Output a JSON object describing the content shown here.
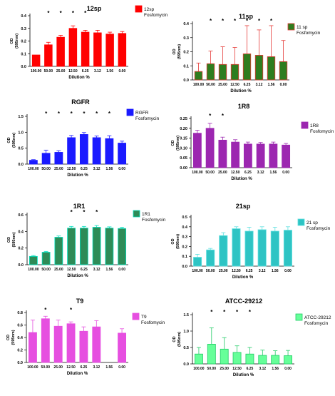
{
  "figure": {
    "xlabel": "Dilution %",
    "categories": [
      "100.00",
      "50.00",
      "25.00",
      "12.50",
      "6.25",
      "3.12",
      "1.56",
      "0.00"
    ]
  },
  "chart_data": [
    {
      "type": "bar",
      "title": "12sp",
      "xlabel": "Dilution %",
      "ylabel": "OD (595nm)",
      "ylim": [
        0,
        0.4
      ],
      "yticks": [
        "0.0",
        "0.1",
        "0.2",
        "0.3",
        "0.4"
      ],
      "categories": [
        "100.00",
        "50.00",
        "25.00",
        "12.50",
        "6.25",
        "3.12",
        "1.56",
        "0.00"
      ],
      "series": [
        {
          "name": "12sp Fosfomycin",
          "values": [
            0.09,
            0.17,
            0.23,
            0.3,
            0.27,
            0.265,
            0.255,
            0.26
          ],
          "errors": [
            0.0,
            0.02,
            0.015,
            0.02,
            0.015,
            0.02,
            0.015,
            0.015
          ]
        }
      ],
      "significant": [
        false,
        true,
        true,
        true,
        true,
        false,
        false,
        false
      ],
      "colors": {
        "fill": "#ff0000",
        "edge": "#ff0000"
      },
      "legend_position": "right"
    },
    {
      "type": "bar",
      "title": "11sp",
      "xlabel": "Dilution %",
      "ylabel": "OD (595nm)",
      "ylim": [
        0,
        0.4
      ],
      "yticks": [
        "0.0",
        "0.1",
        "0.2",
        "0.3",
        "0.4"
      ],
      "categories": [
        "100.00",
        "50.00",
        "25.00",
        "12.50",
        "6.25",
        "3.12",
        "1.56",
        "0.00"
      ],
      "series": [
        {
          "name": "11 sp Fosfomycin",
          "values": [
            0.06,
            0.115,
            0.11,
            0.11,
            0.185,
            0.175,
            0.165,
            0.13
          ],
          "errors": [
            0.06,
            0.09,
            0.125,
            0.12,
            0.2,
            0.18,
            0.22,
            0.15
          ]
        }
      ],
      "significant": [
        false,
        true,
        true,
        true,
        true,
        true,
        true,
        false
      ],
      "colors": {
        "fill": "#2e7d1f",
        "edge": "#e53935"
      },
      "legend_position": "right"
    },
    {
      "type": "bar",
      "title": "RGFR",
      "xlabel": "Dilution %",
      "ylabel": "OD (595nm)",
      "ylim": [
        0,
        1.5
      ],
      "yticks": [
        "0.0",
        "0.5",
        "1.0",
        "1.5"
      ],
      "categories": [
        "100.00",
        "50.00",
        "25.00",
        "12.50",
        "6.25",
        "3.12",
        "1.56",
        "0.00"
      ],
      "series": [
        {
          "name": "RGFR Fosfomycin",
          "values": [
            0.12,
            0.34,
            0.37,
            0.83,
            0.93,
            0.83,
            0.8,
            0.66
          ],
          "errors": [
            0.02,
            0.1,
            0.05,
            0.07,
            0.06,
            0.05,
            0.09,
            0.06
          ]
        }
      ],
      "significant": [
        false,
        true,
        true,
        true,
        true,
        true,
        true,
        false
      ],
      "colors": {
        "fill": "#1a1aff",
        "edge": "#1a1aff"
      },
      "legend_position": "right"
    },
    {
      "type": "bar",
      "title": "1R8",
      "xlabel": "Dilution %",
      "ylabel": "OD (595nm)",
      "ylim": [
        0,
        0.25
      ],
      "yticks": [
        "0.00",
        "0.05",
        "0.10",
        "0.15",
        "0.20",
        "0.25"
      ],
      "categories": [
        "100.00",
        "50.00",
        "25.00",
        "12.50",
        "6.25",
        "3.12",
        "1.56",
        "0.00"
      ],
      "series": [
        {
          "name": "1R8 Fosfomycin",
          "values": [
            0.175,
            0.2,
            0.14,
            0.13,
            0.12,
            0.12,
            0.12,
            0.115
          ],
          "errors": [
            0.015,
            0.025,
            0.015,
            0.012,
            0.01,
            0.008,
            0.01,
            0.008
          ]
        }
      ],
      "significant": [
        false,
        true,
        true,
        false,
        false,
        false,
        false,
        false
      ],
      "colors": {
        "fill": "#9c27b0",
        "edge": "#9c27b0"
      },
      "legend_position": "right"
    },
    {
      "type": "bar",
      "title": "1R1",
      "xlabel": "Dilution %",
      "ylabel": "OD (595nm)",
      "ylim": [
        0,
        0.6
      ],
      "yticks": [
        "0.0",
        "0.2",
        "0.4",
        "0.6"
      ],
      "categories": [
        "100.00",
        "50.00",
        "25.00",
        "12.50",
        "6.25",
        "3.12",
        "1.56",
        "0.00"
      ],
      "series": [
        {
          "name": "1R1 Fosfomycin",
          "values": [
            0.1,
            0.15,
            0.33,
            0.44,
            0.44,
            0.45,
            0.44,
            0.435
          ],
          "errors": [
            0.01,
            0.01,
            0.015,
            0.02,
            0.02,
            0.02,
            0.015,
            0.015
          ]
        }
      ],
      "significant": [
        false,
        false,
        false,
        true,
        true,
        true,
        false,
        false
      ],
      "colors": {
        "fill": "#2e8b57",
        "edge": "#00e0c0"
      },
      "legend_position": "right"
    },
    {
      "type": "bar",
      "title": "21sp",
      "xlabel": "Dilution %",
      "ylabel": "OD (595nm)",
      "ylim": [
        0,
        0.5
      ],
      "yticks": [
        "0.0",
        "0.1",
        "0.2",
        "0.3",
        "0.4",
        "0.5"
      ],
      "categories": [
        "100.00",
        "50.00",
        "25.00",
        "12.50",
        "6.25",
        "3.12",
        "1.56",
        "0.00"
      ],
      "series": [
        {
          "name": "21 sp Fosfomycin",
          "values": [
            0.09,
            0.165,
            0.31,
            0.38,
            0.355,
            0.37,
            0.355,
            0.365
          ],
          "errors": [
            0.03,
            0.015,
            0.03,
            0.02,
            0.04,
            0.03,
            0.04,
            0.035
          ]
        }
      ],
      "significant": [
        false,
        false,
        false,
        false,
        false,
        false,
        false,
        false
      ],
      "colors": {
        "fill": "#2ec4c4",
        "edge": "#5ee0e0"
      },
      "legend_position": "right"
    },
    {
      "type": "bar",
      "title": "T9",
      "xlabel": "Dilution %",
      "ylabel": "OD (595nm)",
      "ylim": [
        0,
        0.8
      ],
      "yticks": [
        "0.0",
        "0.2",
        "0.4",
        "0.6",
        "0.8"
      ],
      "categories": [
        "100.00",
        "50.00",
        "25.00",
        "12.50",
        "6.25",
        "3.12",
        "1.56",
        "0.00"
      ],
      "series": [
        {
          "name": "T9 Fosfomycin",
          "values": [
            0.48,
            0.7,
            0.58,
            0.62,
            0.5,
            0.57,
            null,
            0.47
          ],
          "errors": [
            0.2,
            0.04,
            0.1,
            0.03,
            0.07,
            0.1,
            null,
            0.07
          ]
        }
      ],
      "significant": [
        false,
        true,
        false,
        true,
        false,
        false,
        false,
        false
      ],
      "colors": {
        "fill": "#e64fe0",
        "edge": "#e64fe0"
      },
      "legend_position": "right"
    },
    {
      "type": "bar",
      "title": "ATCC-29212",
      "xlabel": "Dilution %",
      "ylabel": "OD (595nm)",
      "ylim": [
        0,
        1.5
      ],
      "yticks": [
        "0.0",
        "0.5",
        "1.0",
        "1.5"
      ],
      "categories": [
        "100.00",
        "50.00",
        "25.00",
        "12.50",
        "6.25",
        "3.12",
        "1.56",
        "0.00"
      ],
      "series": [
        {
          "name": "ATCC-29212 Fosfomycin",
          "values": [
            0.3,
            0.6,
            0.45,
            0.35,
            0.3,
            0.26,
            0.26,
            0.25
          ],
          "errors": [
            0.2,
            0.5,
            0.35,
            0.2,
            0.2,
            0.16,
            0.14,
            0.16
          ]
        }
      ],
      "significant": [
        false,
        true,
        true,
        true,
        true,
        false,
        false,
        false
      ],
      "colors": {
        "fill": "#66ff99",
        "edge": "#22cc66"
      },
      "legend_position": "right"
    }
  ]
}
